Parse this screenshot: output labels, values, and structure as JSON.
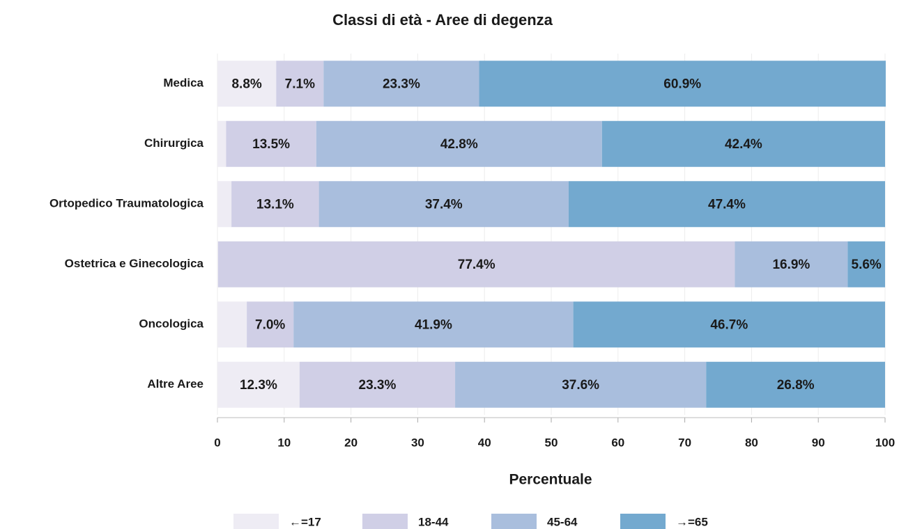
{
  "chart_data": {
    "type": "stacked-bar",
    "orientation": "horizontal",
    "title": "Classi di età - Aree di degenza",
    "x_label": "Percentuale",
    "categories": [
      "Medica",
      "Chirurgica",
      "Ortopedico Traumatologica",
      "Ostetrica e Ginecologica",
      "Oncologica",
      "Altre Aree"
    ],
    "series": [
      {
        "name": "←=17",
        "color": "#eeecf4",
        "values": [
          8.8,
          1.3,
          2.1,
          0.1,
          4.4,
          12.3
        ],
        "value_labels": [
          "8.8%",
          null,
          null,
          null,
          null,
          "12.3%"
        ]
      },
      {
        "name": "18-44",
        "color": "#d0cfe6",
        "values": [
          7.1,
          13.5,
          13.1,
          77.4,
          7.0,
          23.3
        ],
        "value_labels": [
          "7.1%",
          "13.5%",
          "13.1%",
          "77.4%",
          "7.0%",
          "23.3%"
        ]
      },
      {
        "name": "45-64",
        "color": "#a9bedd",
        "values": [
          23.3,
          42.8,
          37.4,
          16.9,
          41.9,
          37.6
        ],
        "value_labels": [
          "23.3%",
          "42.8%",
          "37.4%",
          "16.9%",
          "41.9%",
          "37.6%"
        ]
      },
      {
        "name": "→=65",
        "color": "#73a9cf",
        "values": [
          60.9,
          42.4,
          47.4,
          5.6,
          46.7,
          26.8
        ],
        "value_labels": [
          "60.9%",
          "42.4%",
          "47.4%",
          "5.6%",
          "46.7%",
          "26.8%"
        ]
      }
    ],
    "xlim": [
      0,
      100
    ],
    "xticks": [
      0,
      10,
      20,
      30,
      40,
      50,
      60,
      70,
      80,
      90,
      100
    ],
    "grid": true
  }
}
